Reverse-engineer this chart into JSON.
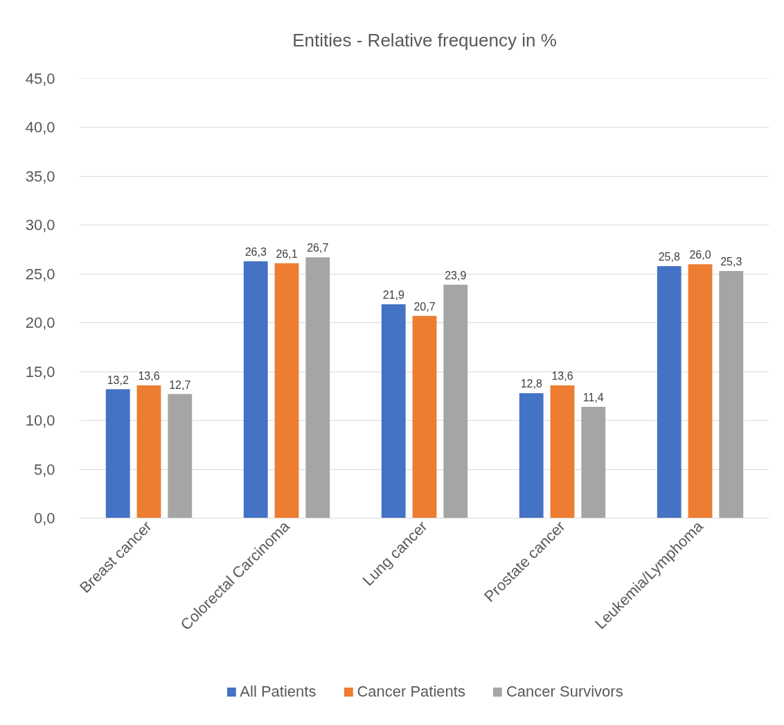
{
  "chart_data": {
    "type": "bar",
    "title": "Entities - Relative frequency in %",
    "categories": [
      "Breast cancer",
      "Colorectal Carcinoma",
      "Lung cancer",
      "Prostate cancer",
      "Leukemia/Lymphoma"
    ],
    "series": [
      {
        "name": "All Patients",
        "color": "#4472c4",
        "values": [
          13.2,
          26.3,
          21.9,
          12.8,
          25.8
        ],
        "value_labels": [
          "13,2",
          "26,3",
          "21,9",
          "12,8",
          "25,8"
        ]
      },
      {
        "name": "Cancer Patients",
        "color": "#ed7d31",
        "values": [
          13.6,
          26.1,
          20.7,
          13.6,
          26.0
        ],
        "value_labels": [
          "13,6",
          "26,1",
          "20,7",
          "13,6",
          "26,0"
        ]
      },
      {
        "name": "Cancer Survivors",
        "color": "#a5a5a5",
        "values": [
          12.7,
          26.7,
          23.9,
          11.4,
          25.3
        ],
        "value_labels": [
          "12,7",
          "26,7",
          "23,9",
          "11,4",
          "25,3"
        ]
      }
    ],
    "ylim": [
      0,
      45
    ],
    "yticks": [
      {
        "value": 0,
        "label": "0,0"
      },
      {
        "value": 5,
        "label": "5,0"
      },
      {
        "value": 10,
        "label": "10,0"
      },
      {
        "value": 15,
        "label": "15,0"
      },
      {
        "value": 20,
        "label": "20,0"
      },
      {
        "value": 25,
        "label": "25,0"
      },
      {
        "value": 30,
        "label": "30,0"
      },
      {
        "value": 35,
        "label": "35,0"
      },
      {
        "value": 40,
        "label": "40,0"
      },
      {
        "value": 45,
        "label": "45,0"
      }
    ],
    "grid": "y",
    "legend": "bottom"
  }
}
